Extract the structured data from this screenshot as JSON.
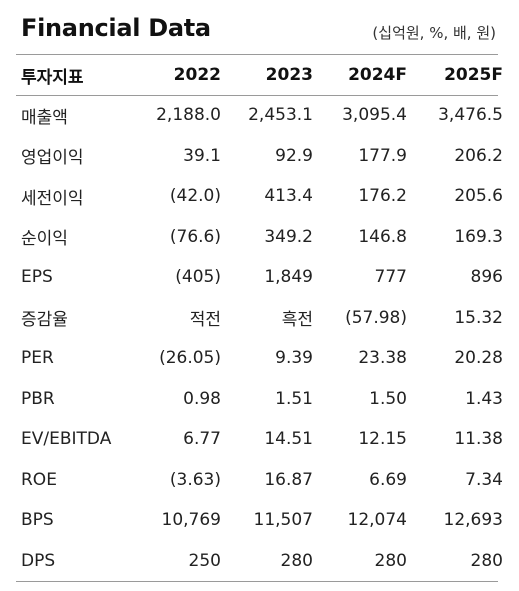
{
  "title": "Financial Data",
  "unit": "(십억원, %, 배, 원)",
  "headers": [
    "투자지표",
    "2022",
    "2023",
    "2024F",
    "2025F"
  ],
  "rows": [
    [
      "매출액",
      "2,188.0",
      "2,453.1",
      "3,095.4",
      "3,476.5"
    ],
    [
      "영업이익",
      "39.1",
      "92.9",
      "177.9",
      "206.2"
    ],
    [
      "세전이익",
      "(42.0)",
      "413.4",
      "176.2",
      "205.6"
    ],
    [
      "순이익",
      "(76.6)",
      "349.2",
      "146.8",
      "169.3"
    ],
    [
      "EPS",
      "(405)",
      "1,849",
      "777",
      "896"
    ],
    [
      "증감율",
      "적전",
      "흑전",
      "(57.98)",
      "15.32"
    ],
    [
      "PER",
      "(26.05)",
      "9.39",
      "23.38",
      "20.28"
    ],
    [
      "PBR",
      "0.98",
      "1.51",
      "1.50",
      "1.43"
    ],
    [
      "EV/EBITDA",
      "6.77",
      "14.51",
      "12.15",
      "11.38"
    ],
    [
      "ROE",
      "(3.63)",
      "16.87",
      "6.69",
      "7.34"
    ],
    [
      "BPS",
      "10,769",
      "11,507",
      "12,074",
      "12,693"
    ],
    [
      "DPS",
      "250",
      "280",
      "280",
      "280"
    ]
  ]
}
